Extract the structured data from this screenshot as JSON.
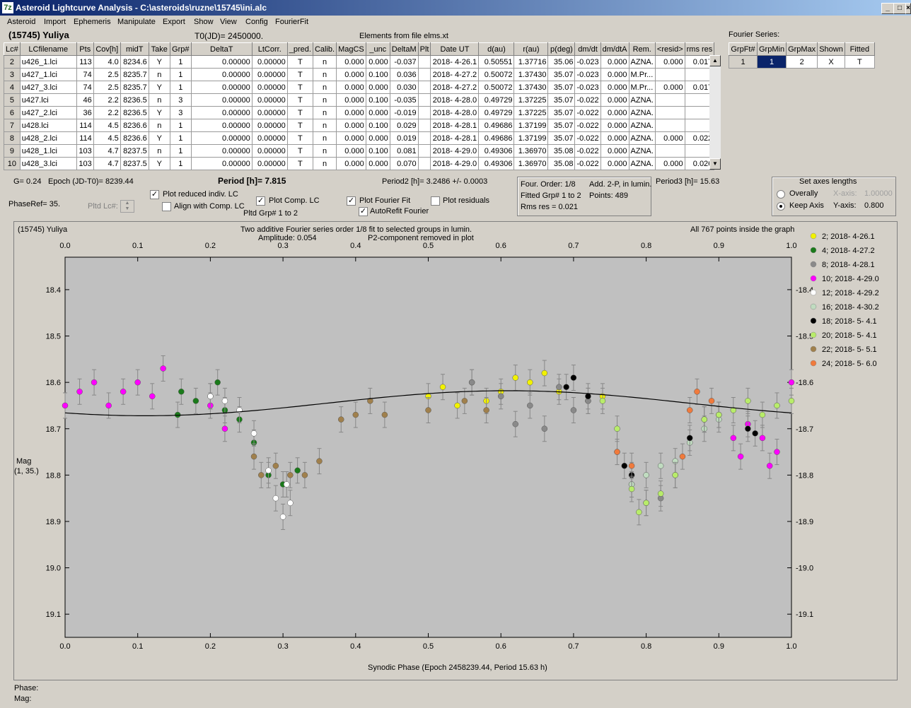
{
  "window": {
    "title": "Asteroid Lightcurve Analysis - C:\\asteroids\\ruzne\\15745\\ini.alc",
    "app_icon": "7z"
  },
  "menu": [
    "Asteroid",
    "Import",
    "Ephemeris",
    "Manipulate",
    "Export",
    "Show",
    "View",
    "Config",
    "FourierFit"
  ],
  "asteroid_name": "(15745) Yuliya",
  "t0": "T0(JD)= 2450000.",
  "elements_note": "Elements from file elms.xt",
  "table": {
    "headers": [
      "Lc#",
      "LCfilename",
      "Pts",
      "Cov[h]",
      "midT",
      "Take",
      "Grp#",
      "DeltaT",
      "LtCorr.",
      "_pred.",
      "Calib.",
      "MagCS",
      "_unc",
      "DeltaM",
      "Plt",
      "Date UT",
      "d(au)",
      "r(au)",
      "p(deg)",
      "dm/dt",
      "dm/dtA",
      "Rem.",
      "<resid>",
      "rms res"
    ],
    "rows": [
      [
        "2",
        "u426_1.lci",
        "113",
        "4.0",
        "8234.6",
        "Y",
        "1",
        "0.00000",
        "0.00000",
        "T",
        "n",
        "0.000",
        "0.000",
        "-0.037",
        "",
        "2018- 4-26.1",
        "0.50551",
        "1.37716",
        "35.06",
        "-0.023",
        "0.000",
        "AZNA.",
        "0.000",
        "0.017"
      ],
      [
        "3",
        "u427_1.lci",
        "74",
        "2.5",
        "8235.7",
        "n",
        "1",
        "0.00000",
        "0.00000",
        "T",
        "n",
        "0.000",
        "0.100",
        "0.036",
        "",
        "2018- 4-27.2",
        "0.50072",
        "1.37430",
        "35.07",
        "-0.023",
        "0.000",
        "M.Pr...",
        "",
        ""
      ],
      [
        "4",
        "u427_3.lci",
        "74",
        "2.5",
        "8235.7",
        "Y",
        "1",
        "0.00000",
        "0.00000",
        "T",
        "n",
        "0.000",
        "0.000",
        "0.030",
        "",
        "2018- 4-27.2",
        "0.50072",
        "1.37430",
        "35.07",
        "-0.023",
        "0.000",
        "M.Pr...",
        "0.000",
        "0.017"
      ],
      [
        "5",
        "u427.lci",
        "46",
        "2.2",
        "8236.5",
        "n",
        "3",
        "0.00000",
        "0.00000",
        "T",
        "n",
        "0.000",
        "0.100",
        "-0.035",
        "",
        "2018- 4-28.0",
        "0.49729",
        "1.37225",
        "35.07",
        "-0.022",
        "0.000",
        "AZNA.",
        "",
        ""
      ],
      [
        "6",
        "u427_2.lci",
        "36",
        "2.2",
        "8236.5",
        "Y",
        "3",
        "0.00000",
        "0.00000",
        "T",
        "n",
        "0.000",
        "0.000",
        "-0.019",
        "",
        "2018- 4-28.0",
        "0.49729",
        "1.37225",
        "35.07",
        "-0.022",
        "0.000",
        "AZNA.",
        "",
        ""
      ],
      [
        "7",
        "u428.lci",
        "114",
        "4.5",
        "8236.6",
        "n",
        "1",
        "0.00000",
        "0.00000",
        "T",
        "n",
        "0.000",
        "0.100",
        "0.029",
        "",
        "2018- 4-28.1",
        "0.49686",
        "1.37199",
        "35.07",
        "-0.022",
        "0.000",
        "AZNA.",
        "",
        ""
      ],
      [
        "8",
        "u428_2.lci",
        "114",
        "4.5",
        "8236.6",
        "Y",
        "1",
        "0.00000",
        "0.00000",
        "T",
        "n",
        "0.000",
        "0.000",
        "0.019",
        "",
        "2018- 4-28.1",
        "0.49686",
        "1.37199",
        "35.07",
        "-0.022",
        "0.000",
        "AZNA.",
        "0.000",
        "0.022"
      ],
      [
        "9",
        "u428_1.lci",
        "103",
        "4.7",
        "8237.5",
        "n",
        "1",
        "0.00000",
        "0.00000",
        "T",
        "n",
        "0.000",
        "0.100",
        "0.081",
        "",
        "2018- 4-29.0",
        "0.49306",
        "1.36970",
        "35.08",
        "-0.022",
        "0.000",
        "AZNA.",
        "",
        ""
      ],
      [
        "10",
        "u428_3.lci",
        "103",
        "4.7",
        "8237.5",
        "Y",
        "1",
        "0.00000",
        "0.00000",
        "T",
        "n",
        "0.000",
        "0.000",
        "0.070",
        "",
        "2018- 4-29.0",
        "0.49306",
        "1.36970",
        "35.08",
        "-0.022",
        "0.000",
        "AZNA.",
        "0.000",
        "0.026"
      ]
    ]
  },
  "fourier": {
    "title": "Fourier Series:",
    "headers": [
      "GrpFt#",
      "GrpMin",
      "GrpMax",
      "Shown",
      "Fitted"
    ],
    "row": [
      "1",
      "1",
      "2",
      "X",
      "T"
    ]
  },
  "params": {
    "g": "G= 0.24",
    "epoch": "Epoch (JD-T0)= 8239.44",
    "period": "Period [h]= 7.815",
    "period2": "Period2 [h]= 3.2486 +/- 0.0003",
    "period3": "Period3 [h]= 15.63",
    "phase_ref": "PhaseRef= 35.",
    "pltd_lc": "Pltd Lc#:",
    "pltd_grp": "Pltd Grp#  1  to  2"
  },
  "checks": {
    "plot_reduced": {
      "label": "Plot reduced indiv. LC",
      "checked": true
    },
    "align": {
      "label": "Align with Comp. LC",
      "checked": false
    },
    "plot_comp": {
      "label": "Plot Comp. LC",
      "checked": true
    },
    "plot_fourier": {
      "label": "Plot Fourier Fit",
      "checked": true
    },
    "autorefit": {
      "label": "AutoRefit Fourier",
      "checked": true
    },
    "plot_residuals": {
      "label": "Plot residuals",
      "checked": false
    }
  },
  "fitinfo": {
    "order": "Four. Order:  1/8",
    "add": "Add. 2-P, in lumin.",
    "fitted": "Fitted Grp# 1 to 2",
    "points": "Points: 489",
    "rms": "Rms res     = 0.021"
  },
  "axes_box": {
    "title": "Set axes lengths",
    "overally": "Overally",
    "keep": "Keep Axis",
    "x_label": "X-axis:",
    "x_value": "1.00000",
    "y_label": "Y-axis:",
    "y_value": "0.800"
  },
  "plot_header": {
    "name": "(15745) Yuliya",
    "line1": "Two additive Fourier series order 1/8 fit to selected groups in lumin.",
    "amplitude": "Amplitude: 0.054",
    "p2note": "P2-component removed in plot",
    "inside": "All 767 points inside the graph"
  },
  "status": {
    "phase": "Phase:",
    "mag": "Mag:"
  },
  "chart_data": {
    "type": "scatter",
    "xlabel": "Synodic Phase (Epoch 2458239.44, Period 15.63 h)",
    "ylabel": "Mag",
    "ylabel2": "(1, 35.)",
    "xlim": [
      0.0,
      1.0
    ],
    "ylim": [
      19.15,
      18.33
    ],
    "xticks": [
      "0.0",
      "0.1",
      "0.2",
      "0.3",
      "0.4",
      "0.5",
      "0.6",
      "0.7",
      "0.8",
      "0.9",
      "1.0"
    ],
    "yticks": [
      "18.4",
      "18.5",
      "18.6",
      "18.7",
      "18.8",
      "18.9",
      "19.0",
      "19.1"
    ],
    "fit": {
      "mean": 18.645,
      "amp": 0.027,
      "phase0": 0.61
    },
    "series": [
      {
        "name": "2; 2018- 4-26.1",
        "color": "#f2f200",
        "points": [
          [
            0.5,
            18.63
          ],
          [
            0.52,
            18.61
          ],
          [
            0.54,
            18.65
          ],
          [
            0.56,
            18.6
          ],
          [
            0.58,
            18.64
          ],
          [
            0.6,
            18.62
          ],
          [
            0.62,
            18.59
          ],
          [
            0.64,
            18.6
          ],
          [
            0.66,
            18.58
          ],
          [
            0.68,
            18.62
          ],
          [
            0.72,
            18.64
          ],
          [
            0.74,
            18.63
          ]
        ]
      },
      {
        "name": "4; 2018- 4-27.2",
        "color": "#1a7a1a",
        "points": [
          [
            0.16,
            18.62
          ],
          [
            0.18,
            18.64
          ],
          [
            0.2,
            18.63
          ],
          [
            0.22,
            18.66
          ],
          [
            0.24,
            18.68
          ],
          [
            0.26,
            18.73
          ],
          [
            0.28,
            18.8
          ],
          [
            0.3,
            18.82
          ],
          [
            0.32,
            18.79
          ],
          [
            0.155,
            18.67
          ],
          [
            0.21,
            18.6
          ]
        ]
      },
      {
        "name": "8; 2018- 4-28.1",
        "color": "#8a8a8a",
        "points": [
          [
            0.56,
            18.6
          ],
          [
            0.6,
            18.63
          ],
          [
            0.64,
            18.65
          ],
          [
            0.68,
            18.61
          ],
          [
            0.7,
            18.66
          ],
          [
            0.72,
            18.64
          ],
          [
            0.76,
            18.75
          ],
          [
            0.78,
            18.82
          ],
          [
            0.8,
            18.86
          ],
          [
            0.82,
            18.85
          ],
          [
            0.84,
            18.8
          ],
          [
            0.62,
            18.69
          ],
          [
            0.66,
            18.7
          ]
        ]
      },
      {
        "name": "10; 2018- 4-29.0",
        "color": "#ff00ff",
        "points": [
          [
            0.0,
            18.65
          ],
          [
            0.02,
            18.62
          ],
          [
            0.04,
            18.6
          ],
          [
            0.06,
            18.65
          ],
          [
            0.08,
            18.62
          ],
          [
            0.1,
            18.6
          ],
          [
            0.12,
            18.63
          ],
          [
            0.135,
            18.57
          ],
          [
            0.2,
            18.65
          ],
          [
            0.22,
            18.7
          ],
          [
            0.92,
            18.72
          ],
          [
            0.94,
            18.69
          ],
          [
            0.96,
            18.72
          ],
          [
            0.98,
            18.75
          ],
          [
            1.0,
            18.6
          ],
          [
            0.93,
            18.76
          ],
          [
            0.97,
            18.78
          ]
        ]
      },
      {
        "name": "12; 2018- 4-29.2",
        "color": "#ffffff",
        "points": [
          [
            0.2,
            18.63
          ],
          [
            0.22,
            18.64
          ],
          [
            0.24,
            18.66
          ],
          [
            0.26,
            18.71
          ],
          [
            0.28,
            18.79
          ],
          [
            0.29,
            18.85
          ],
          [
            0.3,
            18.89
          ],
          [
            0.31,
            18.86
          ],
          [
            0.305,
            18.82
          ]
        ]
      },
      {
        "name": "16; 2018- 4-30.2",
        "color": "#c0dcc0",
        "points": [
          [
            0.8,
            18.8
          ],
          [
            0.82,
            18.78
          ],
          [
            0.84,
            18.77
          ],
          [
            0.86,
            18.73
          ],
          [
            0.88,
            18.7
          ],
          [
            0.9,
            18.68
          ],
          [
            0.78,
            18.82
          ]
        ]
      },
      {
        "name": "18; 2018- 5- 4.1",
        "color": "#000000",
        "points": [
          [
            0.69,
            18.61
          ],
          [
            0.7,
            18.59
          ],
          [
            0.72,
            18.63
          ],
          [
            0.77,
            18.78
          ],
          [
            0.78,
            18.8
          ],
          [
            0.86,
            18.72
          ],
          [
            0.88,
            18.68
          ],
          [
            0.9,
            18.67
          ],
          [
            0.94,
            18.7
          ],
          [
            0.95,
            18.71
          ]
        ]
      },
      {
        "name": "20; 2018- 5- 4.1",
        "color": "#b8ec6a",
        "points": [
          [
            0.74,
            18.64
          ],
          [
            0.76,
            18.7
          ],
          [
            0.78,
            18.83
          ],
          [
            0.79,
            18.88
          ],
          [
            0.8,
            18.86
          ],
          [
            0.82,
            18.84
          ],
          [
            0.84,
            18.8
          ],
          [
            0.88,
            18.68
          ],
          [
            0.9,
            18.67
          ],
          [
            0.92,
            18.66
          ],
          [
            0.94,
            18.64
          ],
          [
            0.96,
            18.67
          ],
          [
            0.98,
            18.65
          ],
          [
            1.0,
            18.64
          ]
        ]
      },
      {
        "name": "22; 2018- 5- 5.1",
        "color": "#a0804c",
        "points": [
          [
            0.26,
            18.76
          ],
          [
            0.27,
            18.8
          ],
          [
            0.29,
            18.78
          ],
          [
            0.31,
            18.8
          ],
          [
            0.33,
            18.8
          ],
          [
            0.35,
            18.77
          ],
          [
            0.38,
            18.68
          ],
          [
            0.4,
            18.67
          ],
          [
            0.42,
            18.64
          ],
          [
            0.44,
            18.67
          ],
          [
            0.5,
            18.66
          ],
          [
            0.55,
            18.64
          ],
          [
            0.58,
            18.66
          ]
        ]
      },
      {
        "name": "24; 2018- 5- 6.0",
        "color": "#f07a3c",
        "points": [
          [
            0.76,
            18.75
          ],
          [
            0.78,
            18.78
          ],
          [
            0.86,
            18.66
          ],
          [
            0.87,
            18.62
          ],
          [
            0.89,
            18.64
          ],
          [
            0.85,
            18.76
          ]
        ]
      }
    ]
  }
}
